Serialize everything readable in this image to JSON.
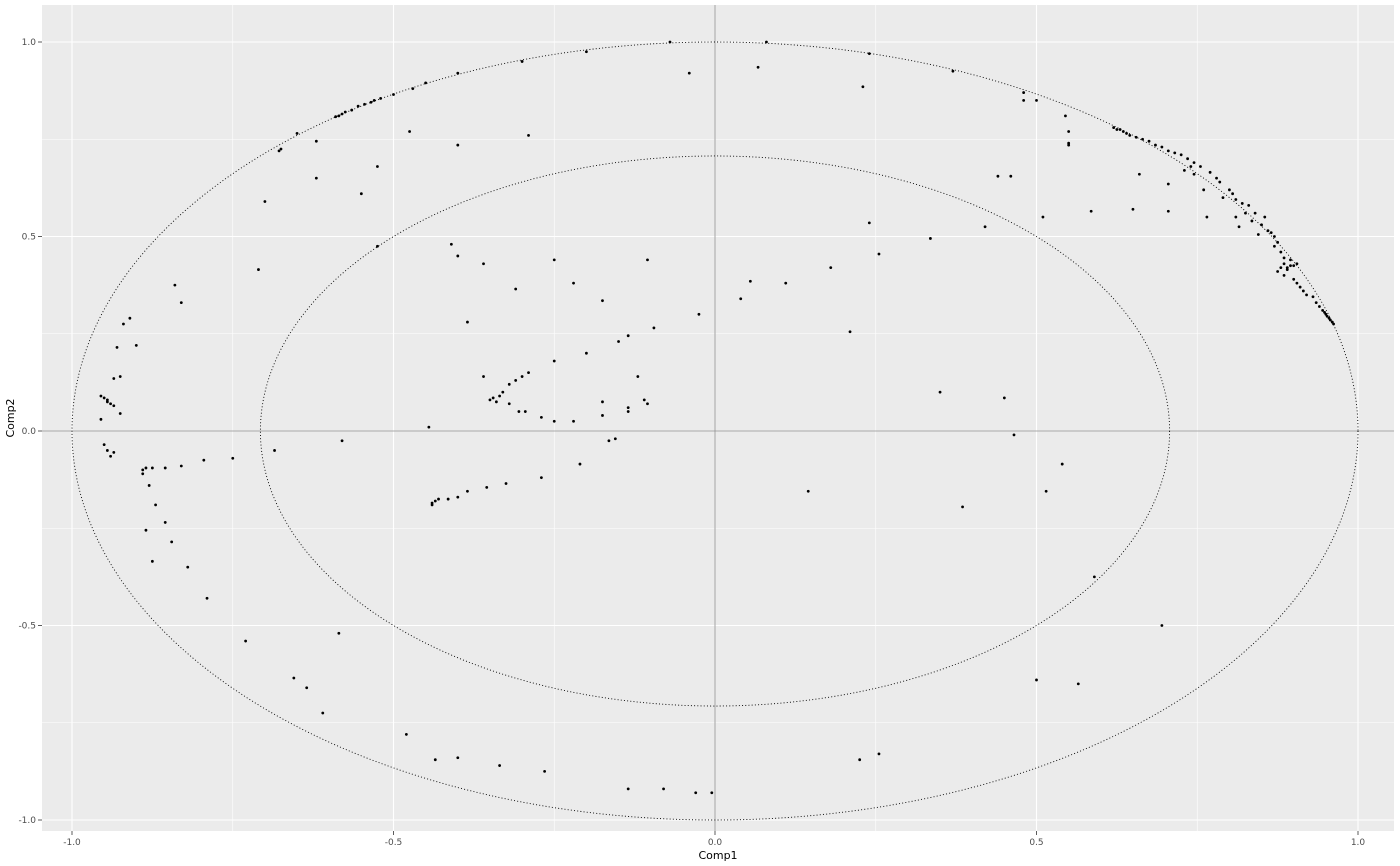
{
  "chart_data": {
    "type": "scatter",
    "title": "",
    "xlabel": "Comp1",
    "ylabel": "Comp2",
    "xlim": [
      -1.0,
      1.0
    ],
    "ylim": [
      -1.0,
      1.0
    ],
    "x_ticks": [
      "-1.0",
      "-0.5",
      "0.0",
      "0.5",
      "1.0"
    ],
    "y_ticks": [
      "-1.0",
      "-0.5",
      "0.0",
      "0.5",
      "1.0"
    ],
    "grid": true,
    "legend": "none",
    "background_color": "#ebebeb",
    "grid_color": "#ffffff",
    "point_color": "#000000",
    "reference_lines": {
      "x": 0,
      "y": 0
    },
    "circles": [
      {
        "radius": 1.0,
        "style": "dotted"
      },
      {
        "radius": 0.707,
        "style": "dotted"
      }
    ],
    "points": [
      [
        -0.04,
        0.92
      ],
      [
        0.067,
        0.935
      ],
      [
        0.08,
        1.0
      ],
      [
        -0.07,
        1.0
      ],
      [
        0.24,
        0.97
      ],
      [
        0.23,
        0.885
      ],
      [
        0.37,
        0.925
      ],
      [
        -0.2,
        0.975
      ],
      [
        -0.3,
        0.95
      ],
      [
        -0.4,
        0.92
      ],
      [
        -0.45,
        0.895
      ],
      [
        -0.47,
        0.88
      ],
      [
        -0.5,
        0.865
      ],
      [
        -0.52,
        0.855
      ],
      [
        -0.53,
        0.85
      ],
      [
        -0.535,
        0.845
      ],
      [
        -0.545,
        0.84
      ],
      [
        -0.555,
        0.835
      ],
      [
        -0.565,
        0.825
      ],
      [
        -0.575,
        0.82
      ],
      [
        -0.58,
        0.815
      ],
      [
        -0.585,
        0.81
      ],
      [
        -0.59,
        0.808
      ],
      [
        -0.65,
        0.765
      ],
      [
        -0.675,
        0.725
      ],
      [
        -0.678,
        0.72
      ],
      [
        -0.62,
        0.745
      ],
      [
        -0.475,
        0.77
      ],
      [
        -0.29,
        0.76
      ],
      [
        -0.4,
        0.735
      ],
      [
        -0.62,
        0.65
      ],
      [
        -0.55,
        0.61
      ],
      [
        -0.525,
        0.68
      ],
      [
        -0.7,
        0.59
      ],
      [
        -0.525,
        0.475
      ],
      [
        -0.41,
        0.48
      ],
      [
        -0.4,
        0.45
      ],
      [
        -0.36,
        0.43
      ],
      [
        -0.25,
        0.44
      ],
      [
        -0.105,
        0.44
      ],
      [
        -0.71,
        0.415
      ],
      [
        -0.84,
        0.375
      ],
      [
        -0.83,
        0.33
      ],
      [
        -0.31,
        0.365
      ],
      [
        -0.22,
        0.38
      ],
      [
        -0.175,
        0.335
      ],
      [
        -0.385,
        0.28
      ],
      [
        -0.095,
        0.265
      ],
      [
        -0.025,
        0.3
      ],
      [
        -0.9,
        0.22
      ],
      [
        -0.93,
        0.215
      ],
      [
        -0.92,
        0.275
      ],
      [
        -0.91,
        0.29
      ],
      [
        -0.15,
        0.23
      ],
      [
        -0.135,
        0.245
      ],
      [
        -0.2,
        0.2
      ],
      [
        -0.29,
        0.15
      ],
      [
        -0.3,
        0.14
      ],
      [
        -0.31,
        0.13
      ],
      [
        -0.32,
        0.12
      ],
      [
        -0.33,
        0.1
      ],
      [
        -0.335,
        0.09
      ],
      [
        -0.345,
        0.085
      ],
      [
        -0.35,
        0.08
      ],
      [
        -0.34,
        0.075
      ],
      [
        -0.32,
        0.07
      ],
      [
        -0.305,
        0.05
      ],
      [
        -0.295,
        0.05
      ],
      [
        -0.27,
        0.035
      ],
      [
        -0.25,
        0.025
      ],
      [
        -0.22,
        0.025
      ],
      [
        -0.25,
        0.18
      ],
      [
        -0.36,
        0.14
      ],
      [
        -0.12,
        0.14
      ],
      [
        -0.11,
        0.08
      ],
      [
        -0.105,
        0.07
      ],
      [
        -0.135,
        0.06
      ],
      [
        -0.135,
        0.05
      ],
      [
        -0.175,
        0.075
      ],
      [
        -0.175,
        0.04
      ],
      [
        -0.165,
        -0.025
      ],
      [
        -0.155,
        -0.02
      ],
      [
        -0.445,
        0.01
      ],
      [
        -0.935,
        0.135
      ],
      [
        -0.925,
        0.14
      ],
      [
        -0.925,
        0.045
      ],
      [
        -0.945,
        0.08
      ],
      [
        -0.95,
        0.085
      ],
      [
        -0.955,
        0.09
      ],
      [
        -0.945,
        0.075
      ],
      [
        -0.94,
        0.07
      ],
      [
        -0.935,
        0.065
      ],
      [
        -0.955,
        0.03
      ],
      [
        -0.95,
        -0.035
      ],
      [
        -0.945,
        -0.05
      ],
      [
        -0.935,
        -0.055
      ],
      [
        -0.94,
        -0.065
      ],
      [
        -0.685,
        -0.05
      ],
      [
        -0.58,
        -0.025
      ],
      [
        -0.75,
        -0.07
      ],
      [
        -0.795,
        -0.075
      ],
      [
        -0.83,
        -0.09
      ],
      [
        -0.855,
        -0.095
      ],
      [
        -0.875,
        -0.095
      ],
      [
        -0.885,
        -0.095
      ],
      [
        -0.89,
        -0.1
      ],
      [
        -0.89,
        -0.11
      ],
      [
        -0.88,
        -0.14
      ],
      [
        -0.87,
        -0.19
      ],
      [
        -0.855,
        -0.235
      ],
      [
        -0.885,
        -0.255
      ],
      [
        -0.845,
        -0.285
      ],
      [
        -0.875,
        -0.335
      ],
      [
        -0.82,
        -0.35
      ],
      [
        -0.79,
        -0.43
      ],
      [
        -0.73,
        -0.54
      ],
      [
        -0.585,
        -0.52
      ],
      [
        -0.655,
        -0.635
      ],
      [
        -0.635,
        -0.66
      ],
      [
        -0.61,
        -0.725
      ],
      [
        -0.21,
        -0.085
      ],
      [
        -0.27,
        -0.12
      ],
      [
        -0.325,
        -0.135
      ],
      [
        -0.355,
        -0.145
      ],
      [
        -0.385,
        -0.155
      ],
      [
        -0.4,
        -0.17
      ],
      [
        -0.415,
        -0.175
      ],
      [
        -0.43,
        -0.175
      ],
      [
        -0.435,
        -0.18
      ],
      [
        -0.44,
        -0.19
      ],
      [
        -0.44,
        -0.185
      ],
      [
        -0.48,
        -0.78
      ],
      [
        -0.435,
        -0.845
      ],
      [
        -0.4,
        -0.84
      ],
      [
        -0.335,
        -0.86
      ],
      [
        -0.265,
        -0.875
      ],
      [
        -0.135,
        -0.92
      ],
      [
        -0.08,
        -0.92
      ],
      [
        -0.03,
        -0.93
      ],
      [
        -0.005,
        -0.93
      ],
      [
        0.225,
        -0.845
      ],
      [
        0.255,
        -0.83
      ],
      [
        0.04,
        0.34
      ],
      [
        0.055,
        0.385
      ],
      [
        0.11,
        0.38
      ],
      [
        0.18,
        0.42
      ],
      [
        0.21,
        0.255
      ],
      [
        0.24,
        0.535
      ],
      [
        0.255,
        0.455
      ],
      [
        0.335,
        0.495
      ],
      [
        0.35,
        0.1
      ],
      [
        0.385,
        -0.195
      ],
      [
        0.145,
        -0.155
      ],
      [
        0.42,
        0.525
      ],
      [
        0.44,
        0.655
      ],
      [
        0.46,
        0.655
      ],
      [
        0.45,
        0.085
      ],
      [
        0.465,
        -0.01
      ],
      [
        0.48,
        0.87
      ],
      [
        0.48,
        0.85
      ],
      [
        0.5,
        0.85
      ],
      [
        0.51,
        0.55
      ],
      [
        0.515,
        -0.155
      ],
      [
        0.54,
        -0.085
      ],
      [
        0.545,
        0.81
      ],
      [
        0.55,
        0.77
      ],
      [
        0.55,
        0.74
      ],
      [
        0.55,
        0.735
      ],
      [
        0.585,
        0.565
      ],
      [
        0.59,
        -0.375
      ],
      [
        0.5,
        -0.64
      ],
      [
        0.565,
        -0.65
      ],
      [
        0.65,
        0.57
      ],
      [
        0.66,
        0.66
      ],
      [
        0.695,
        -0.5
      ],
      [
        0.705,
        0.565
      ],
      [
        0.705,
        0.635
      ],
      [
        0.62,
        0.78
      ],
      [
        0.625,
        0.775
      ],
      [
        0.63,
        0.775
      ],
      [
        0.635,
        0.77
      ],
      [
        0.64,
        0.765
      ],
      [
        0.645,
        0.76
      ],
      [
        0.655,
        0.755
      ],
      [
        0.665,
        0.75
      ],
      [
        0.675,
        0.745
      ],
      [
        0.685,
        0.735
      ],
      [
        0.695,
        0.73
      ],
      [
        0.705,
        0.72
      ],
      [
        0.715,
        0.715
      ],
      [
        0.725,
        0.71
      ],
      [
        0.73,
        0.67
      ],
      [
        0.735,
        0.7
      ],
      [
        0.74,
        0.68
      ],
      [
        0.745,
        0.66
      ],
      [
        0.745,
        0.69
      ],
      [
        0.755,
        0.68
      ],
      [
        0.76,
        0.62
      ],
      [
        0.765,
        0.55
      ],
      [
        0.77,
        0.665
      ],
      [
        0.78,
        0.65
      ],
      [
        0.785,
        0.64
      ],
      [
        0.79,
        0.6
      ],
      [
        0.8,
        0.62
      ],
      [
        0.805,
        0.61
      ],
      [
        0.81,
        0.595
      ],
      [
        0.81,
        0.55
      ],
      [
        0.815,
        0.525
      ],
      [
        0.82,
        0.585
      ],
      [
        0.825,
        0.56
      ],
      [
        0.83,
        0.58
      ],
      [
        0.835,
        0.54
      ],
      [
        0.84,
        0.56
      ],
      [
        0.845,
        0.505
      ],
      [
        0.85,
        0.53
      ],
      [
        0.855,
        0.55
      ],
      [
        0.86,
        0.515
      ],
      [
        0.865,
        0.51
      ],
      [
        0.87,
        0.5
      ],
      [
        0.87,
        0.475
      ],
      [
        0.875,
        0.485
      ],
      [
        0.88,
        0.46
      ],
      [
        0.885,
        0.445
      ],
      [
        0.885,
        0.43
      ],
      [
        0.89,
        0.42
      ],
      [
        0.895,
        0.425
      ],
      [
        0.9,
        0.425
      ],
      [
        0.905,
        0.43
      ],
      [
        0.895,
        0.44
      ],
      [
        0.89,
        0.415
      ],
      [
        0.88,
        0.42
      ],
      [
        0.875,
        0.41
      ],
      [
        0.885,
        0.4
      ],
      [
        0.9,
        0.39
      ],
      [
        0.905,
        0.38
      ],
      [
        0.91,
        0.37
      ],
      [
        0.915,
        0.36
      ],
      [
        0.92,
        0.35
      ],
      [
        0.93,
        0.345
      ],
      [
        0.935,
        0.33
      ],
      [
        0.94,
        0.32
      ],
      [
        0.945,
        0.31
      ],
      [
        0.948,
        0.305
      ],
      [
        0.95,
        0.3
      ],
      [
        0.952,
        0.295
      ],
      [
        0.955,
        0.29
      ],
      [
        0.957,
        0.285
      ],
      [
        0.96,
        0.28
      ],
      [
        0.962,
        0.275
      ]
    ]
  }
}
